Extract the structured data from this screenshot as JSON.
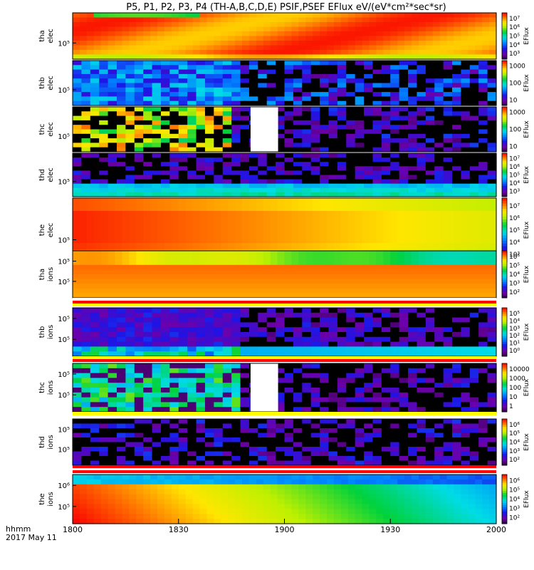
{
  "title": "P5, P1, P2, P3, P4 (TH-A,B,C,D,E) PSIF,PSEF EFlux eV/(eV*cm²*sec*sr)",
  "footer": {
    "time_label": "hhmm",
    "date_label": "2017 May 11"
  },
  "chart_data": {
    "type": "heatmap",
    "x_ticks": [
      "1800",
      "1830",
      "1900",
      "1930",
      "2000"
    ],
    "x_range_minutes": [
      0,
      120
    ],
    "colorbar_label": "EFlux",
    "panels": [
      {
        "probe": "tha",
        "species": "elec",
        "ylabel": [
          "tha",
          "elec"
        ],
        "y_tick": "10⁵",
        "cbar_ticks": [
          "10⁷",
          "10⁶",
          "10⁵",
          "10⁴",
          "10³"
        ],
        "style": "smooth_red",
        "gap": false
      },
      {
        "probe": "thb",
        "species": "elec",
        "ylabel": [
          "thb",
          "elec"
        ],
        "y_tick": "10⁵",
        "cbar_ticks": [
          "1000",
          "100",
          "10"
        ],
        "style": "noisy_blue",
        "gap": false
      },
      {
        "probe": "thc",
        "species": "elec",
        "ylabel": [
          "thc",
          "elec"
        ],
        "y_tick": "10⁵",
        "cbar_ticks": [
          "1000",
          "100",
          "10"
        ],
        "style": "noisy_yellow",
        "gap": true
      },
      {
        "probe": "thd",
        "species": "elec",
        "ylabel": [
          "thd",
          "elec"
        ],
        "y_tick": "10⁵",
        "cbar_ticks": [
          "10⁷",
          "10⁶",
          "10⁵",
          "10⁴",
          "10³"
        ],
        "style": "dark_cyan_band",
        "gap": false
      },
      {
        "probe": "the",
        "species": "elec",
        "ylabel": [
          "the",
          "elec"
        ],
        "y_tick": "10⁵",
        "cbar_ticks": [
          "10⁷",
          "10⁶",
          "10⁵",
          "10⁴",
          "10³"
        ],
        "style": "red_to_yellow",
        "gap": false
      },
      {
        "probe": "tha",
        "species": "ions",
        "ylabel": [
          "tha",
          "ions"
        ],
        "y_tick": "10⁵",
        "y_tick_top": "10⁵",
        "cbar_ticks": [
          "10⁶",
          "10⁵",
          "10⁴",
          "10³",
          "10²"
        ],
        "style": "smooth_red_ions",
        "gap": false
      },
      {
        "probe": "thb",
        "species": "ions",
        "ylabel": [
          "thb",
          "ions"
        ],
        "y_tick": "10⁵",
        "y_tick_top": "10⁵",
        "cbar_ticks": [
          "10⁵",
          "10⁴",
          "10³",
          "10²",
          "10¹",
          "10⁰"
        ],
        "style": "noisy_purple_ions",
        "gap": false
      },
      {
        "probe": "thc",
        "species": "ions",
        "ylabel": [
          "thc",
          "ions"
        ],
        "y_tick": "10⁵",
        "y_tick_top": "10⁵",
        "cbar_ticks": [
          "10000",
          "1000",
          "100",
          "10",
          "1"
        ],
        "style": "noisy_green_ions",
        "gap": true
      },
      {
        "probe": "thd",
        "species": "ions",
        "ylabel": [
          "thd",
          "ions"
        ],
        "y_tick": "10⁵",
        "y_tick_top": "10⁵",
        "cbar_ticks": [
          "10⁶",
          "10⁵",
          "10⁴",
          "10³",
          "10²"
        ],
        "style": "dark_purple_ions",
        "gap": false
      },
      {
        "probe": "the",
        "species": "ions",
        "ylabel": [
          "the",
          "ions"
        ],
        "y_tick": "10⁵",
        "y_tick_top": "10⁶",
        "cbar_ticks": [
          "10⁶",
          "10⁵",
          "10⁴",
          "10³",
          "10²"
        ],
        "style": "red_to_cyan_ions",
        "gap": false
      }
    ]
  }
}
